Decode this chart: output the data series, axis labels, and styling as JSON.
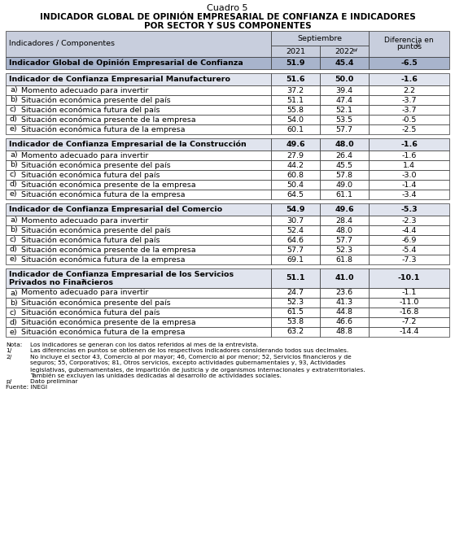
{
  "title_line1": "Cuadro 5",
  "title_line2": "Indicador Global de Opinión Empresarial de Confianza e Indicadores",
  "title_line3": "por Sector y sus Componentes",
  "header_col": "Indicadores / Componentes",
  "header_sept": "Septiembre",
  "header_2021": "2021",
  "header_2022": "2022",
  "header_2022_super": "p/",
  "header_diff1": "Diferencia en",
  "header_diff2": "puntos",
  "header_diff_super": "1/",
  "col_bg": "#C8CEDD",
  "header_bg": "#C8CEDD",
  "global_bg": "#A8B4CC",
  "section_bg": "#E0E4EE",
  "white_bg": "#FFFFFF",
  "rows": [
    {
      "label": "Indicador Global de Opinión Empresarial de Confianza",
      "v2021": "51.9",
      "v2022": "45.4",
      "diff": "-6.5",
      "type": "global"
    },
    {
      "label": "",
      "v2021": "",
      "v2022": "",
      "diff": "",
      "type": "spacer"
    },
    {
      "label": "Indicador de Confianza Empresarial Manufacturero",
      "v2021": "51.6",
      "v2022": "50.0",
      "diff": "-1.6",
      "type": "section_header"
    },
    {
      "label": "a)",
      "sub": "Momento adecuado para invertir",
      "v2021": "37.2",
      "v2022": "39.4",
      "diff": "2.2",
      "type": "subrow"
    },
    {
      "label": "b)",
      "sub": "Situación económica presente del país",
      "v2021": "51.1",
      "v2022": "47.4",
      "diff": "-3.7",
      "type": "subrow"
    },
    {
      "label": "c)",
      "sub": "Situación económica futura del país",
      "v2021": "55.8",
      "v2022": "52.1",
      "diff": "-3.7",
      "type": "subrow"
    },
    {
      "label": "d)",
      "sub": "Situación económica presente de la empresa",
      "v2021": "54.0",
      "v2022": "53.5",
      "diff": "-0.5",
      "type": "subrow"
    },
    {
      "label": "e)",
      "sub": "Situación económica futura de la empresa",
      "v2021": "60.1",
      "v2022": "57.7",
      "diff": "-2.5",
      "type": "subrow"
    },
    {
      "label": "",
      "v2021": "",
      "v2022": "",
      "diff": "",
      "type": "spacer"
    },
    {
      "label": "Indicador de Confianza Empresarial de la Construcción",
      "v2021": "49.6",
      "v2022": "48.0",
      "diff": "-1.6",
      "type": "section_header"
    },
    {
      "label": "a)",
      "sub": "Momento adecuado para invertir",
      "v2021": "27.9",
      "v2022": "26.4",
      "diff": "-1.6",
      "type": "subrow"
    },
    {
      "label": "b)",
      "sub": "Situación económica presente del país",
      "v2021": "44.2",
      "v2022": "45.5",
      "diff": "1.4",
      "type": "subrow"
    },
    {
      "label": "c)",
      "sub": "Situación económica futura del país",
      "v2021": "60.8",
      "v2022": "57.8",
      "diff": "-3.0",
      "type": "subrow"
    },
    {
      "label": "d)",
      "sub": "Situación económica presente de la empresa",
      "v2021": "50.4",
      "v2022": "49.0",
      "diff": "-1.4",
      "type": "subrow"
    },
    {
      "label": "e)",
      "sub": "Situación económica futura de la empresa",
      "v2021": "64.5",
      "v2022": "61.1",
      "diff": "-3.4",
      "type": "subrow"
    },
    {
      "label": "",
      "v2021": "",
      "v2022": "",
      "diff": "",
      "type": "spacer"
    },
    {
      "label": "Indicador de Confianza Empresarial del Comercio",
      "v2021": "54.9",
      "v2022": "49.6",
      "diff": "-5.3",
      "type": "section_header"
    },
    {
      "label": "a)",
      "sub": "Momento adecuado para invertir",
      "v2021": "30.7",
      "v2022": "28.4",
      "diff": "-2.3",
      "type": "subrow"
    },
    {
      "label": "b)",
      "sub": "Situación económica presente del país",
      "v2021": "52.4",
      "v2022": "48.0",
      "diff": "-4.4",
      "type": "subrow"
    },
    {
      "label": "c)",
      "sub": "Situación económica futura del país",
      "v2021": "64.6",
      "v2022": "57.7",
      "diff": "-6.9",
      "type": "subrow"
    },
    {
      "label": "d)",
      "sub": "Situación económica presente de la empresa",
      "v2021": "57.7",
      "v2022": "52.3",
      "diff": "-5.4",
      "type": "subrow"
    },
    {
      "label": "e)",
      "sub": "Situación económica futura de la empresa",
      "v2021": "69.1",
      "v2022": "61.8",
      "diff": "-7.3",
      "type": "subrow"
    },
    {
      "label": "",
      "v2021": "",
      "v2022": "",
      "diff": "",
      "type": "spacer"
    },
    {
      "label": "Indicador de Confianza Empresarial de los Servicios\nPrivados no Financieros",
      "label_super": "2/",
      "v2021": "51.1",
      "v2022": "41.0",
      "diff": "-10.1",
      "type": "section_header2"
    },
    {
      "label": "a)",
      "sub": "Momento adecuado para invertir",
      "v2021": "24.7",
      "v2022": "23.6",
      "diff": "-1.1",
      "type": "subrow"
    },
    {
      "label": "b)",
      "sub": "Situación económica presente del país",
      "v2021": "52.3",
      "v2022": "41.3",
      "diff": "-11.0",
      "type": "subrow"
    },
    {
      "label": "c)",
      "sub": "Situación económica futura del país",
      "v2021": "61.5",
      "v2022": "44.8",
      "diff": "-16.8",
      "type": "subrow"
    },
    {
      "label": "d)",
      "sub": "Situación económica presente de la empresa",
      "v2021": "53.8",
      "v2022": "46.6",
      "diff": "-7.2",
      "type": "subrow"
    },
    {
      "label": "e)",
      "sub": "Situación económica futura de la empresa",
      "v2021": "63.2",
      "v2022": "48.8",
      "diff": "-14.4",
      "type": "subrow"
    }
  ],
  "footnotes": [
    {
      "prefix": "Nota:",
      "text": "Los indicadores se generan con los datos referidos al mes de la entrevista."
    },
    {
      "prefix": "1/",
      "text": "Las diferencias en puntos se obtienen de los respectivos indicadores considerando todos sus decimales."
    },
    {
      "prefix": "2/",
      "text": "No incluye el sector 43, Comercio al por mayor; 46, Comercio al por menor; 52, Servicios financieros y de"
    },
    {
      "prefix": "",
      "text": "seguros; 55, Corporativos; 81, Otros servicios, excepto actividades gubernamentales y, 93, Actividades"
    },
    {
      "prefix": "",
      "text": "legislativas, gubernamentales, de impartición de justicia y de organismos internacionales y extraterritoriales."
    },
    {
      "prefix": "",
      "text": "También se excluyen las unidades dedicadas al desarrollo de actividades sociales."
    },
    {
      "prefix": "p/",
      "text": "Dato preliminar"
    },
    {
      "prefix": "Fuente: INEGI",
      "text": ""
    }
  ]
}
